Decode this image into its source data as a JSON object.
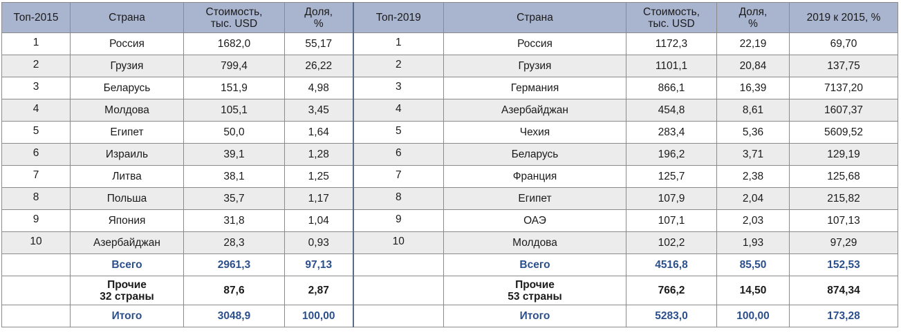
{
  "headers": {
    "top2015": "Топ-2015",
    "country": "Страна",
    "value_line1": "Стоимость,",
    "value_line2": "тыс. USD",
    "share_line1": "Доля,",
    "share_line2": "%",
    "top2019": "Топ-2019",
    "country2": "Страна",
    "value2_line1": "Стоимость,",
    "value2_line2": "тыс. USD",
    "share2_line1": "Доля,",
    "share2_line2": "%",
    "ratio": "2019 к 2015, %"
  },
  "rows": [
    {
      "r15": "1",
      "c15": "Россия",
      "v15": "1682,0",
      "s15": "55,17",
      "r19": "1",
      "c19": "Россия",
      "v19": "1172,3",
      "s19": "22,19",
      "ratio": "69,70"
    },
    {
      "r15": "2",
      "c15": "Грузия",
      "v15": "799,4",
      "s15": "26,22",
      "r19": "2",
      "c19": "Грузия",
      "v19": "1101,1",
      "s19": "20,84",
      "ratio": "137,75"
    },
    {
      "r15": "3",
      "c15": "Беларусь",
      "v15": "151,9",
      "s15": "4,98",
      "r19": "3",
      "c19": "Германия",
      "v19": "866,1",
      "s19": "16,39",
      "ratio": "7137,20"
    },
    {
      "r15": "4",
      "c15": "Молдова",
      "v15": "105,1",
      "s15": "3,45",
      "r19": "4",
      "c19": "Азербайджан",
      "v19": "454,8",
      "s19": "8,61",
      "ratio": "1607,37"
    },
    {
      "r15": "5",
      "c15": "Египет",
      "v15": "50,0",
      "s15": "1,64",
      "r19": "5",
      "c19": "Чехия",
      "v19": "283,4",
      "s19": "5,36",
      "ratio": "5609,52"
    },
    {
      "r15": "6",
      "c15": "Израиль",
      "v15": "39,1",
      "s15": "1,28",
      "r19": "6",
      "c19": "Беларусь",
      "v19": "196,2",
      "s19": "3,71",
      "ratio": "129,19"
    },
    {
      "r15": "7",
      "c15": "Литва",
      "v15": "38,1",
      "s15": "1,25",
      "r19": "7",
      "c19": "Франция",
      "v19": "125,7",
      "s19": "2,38",
      "ratio": "125,68"
    },
    {
      "r15": "8",
      "c15": "Польша",
      "v15": "35,7",
      "s15": "1,17",
      "r19": "8",
      "c19": "Египет",
      "v19": "107,9",
      "s19": "2,04",
      "ratio": "215,82"
    },
    {
      "r15": "9",
      "c15": "Япония",
      "v15": "31,8",
      "s15": "1,04",
      "r19": "9",
      "c19": "ОАЭ",
      "v19": "107,1",
      "s19": "2,03",
      "ratio": "107,13"
    },
    {
      "r15": "10",
      "c15": "Азербайджан",
      "v15": "28,3",
      "s15": "0,93",
      "r19": "10",
      "c19": "Молдова",
      "v19": "102,2",
      "s19": "1,93",
      "ratio": "97,29"
    }
  ],
  "total": {
    "label": "Всего",
    "v15": "2961,3",
    "s15": "97,13",
    "label2": "Всего",
    "v19": "4516,8",
    "s19": "85,50",
    "ratio": "152,53"
  },
  "other": {
    "line1": "Прочие",
    "line2_15": "32 страны",
    "v15": "87,6",
    "s15": "2,87",
    "line1_19": "Прочие",
    "line2_19": "53 страны",
    "v19": "766,2",
    "s19": "14,50",
    "ratio": "874,34"
  },
  "grand": {
    "label": "Итого",
    "v15": "3048,9",
    "s15": "100,00",
    "label2": "Итого",
    "v19": "5283,0",
    "s19": "100,00",
    "ratio": "173,28"
  }
}
